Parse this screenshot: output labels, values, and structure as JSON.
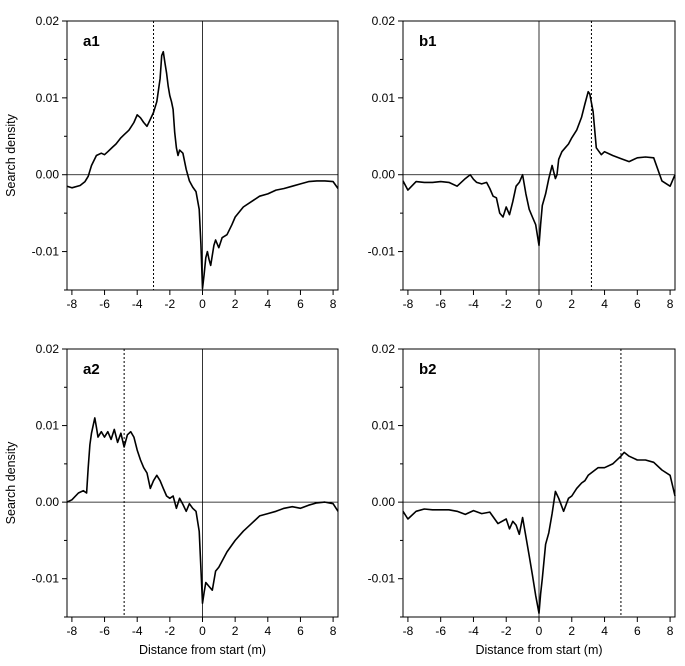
{
  "chart_data": [
    {
      "panel_label": "a1",
      "type": "line",
      "ylabel": "Search density",
      "xlabel": "",
      "xlim": [
        -8.3,
        8.3
      ],
      "ylim": [
        -0.015,
        0.02
      ],
      "xticks": [
        -8,
        -6,
        -4,
        -2,
        0,
        2,
        4,
        6,
        8
      ],
      "xtick_labels": [
        "-8",
        "-6",
        "-4",
        "-2",
        "0",
        "2",
        "4",
        "6",
        "8"
      ],
      "yticks": [
        0.02,
        0.01,
        0.0,
        -0.01
      ],
      "ytick_labels": [
        "0.02",
        "0.01",
        "0.00",
        "-0.01"
      ],
      "zero_vline": 0,
      "dotted_vline": -3.0,
      "series": [
        {
          "x": [
            -8.3,
            -8.0,
            -7.5,
            -7.2,
            -7.0,
            -6.8,
            -6.5,
            -6.2,
            -6.0,
            -5.8,
            -5.5,
            -5.3,
            -5.0,
            -4.8,
            -4.5,
            -4.2,
            -4.0,
            -3.8,
            -3.6,
            -3.4,
            -3.2,
            -3.0,
            -2.8,
            -2.6,
            -2.5,
            -2.4,
            -2.3,
            -2.2,
            -2.1,
            -2.0,
            -1.9,
            -1.8,
            -1.7,
            -1.6,
            -1.5,
            -1.4,
            -1.2,
            -1.0,
            -0.8,
            -0.6,
            -0.4,
            -0.2,
            -0.1,
            0.0,
            0.1,
            0.2,
            0.3,
            0.4,
            0.5,
            0.6,
            0.7,
            0.8,
            1.0,
            1.2,
            1.5,
            1.8,
            2.0,
            2.5,
            3.0,
            3.5,
            4.0,
            4.5,
            5.0,
            5.5,
            6.0,
            6.5,
            7.0,
            7.5,
            8.0,
            8.3
          ],
          "values": [
            -0.0015,
            -0.0017,
            -0.0014,
            -0.0009,
            -0.0002,
            0.0012,
            0.0025,
            0.0028,
            0.0026,
            0.003,
            0.0036,
            0.004,
            0.0048,
            0.0052,
            0.0058,
            0.0068,
            0.0078,
            0.0074,
            0.0068,
            0.0063,
            0.0072,
            0.0081,
            0.0095,
            0.0125,
            0.0155,
            0.016,
            0.0145,
            0.0132,
            0.0115,
            0.0103,
            0.0095,
            0.0085,
            0.0055,
            0.0035,
            0.0025,
            0.0032,
            0.0028,
            0.0007,
            -0.0008,
            -0.0016,
            -0.0022,
            -0.0045,
            -0.009,
            -0.0148,
            -0.013,
            -0.0108,
            -0.01,
            -0.011,
            -0.0118,
            -0.0105,
            -0.0092,
            -0.0085,
            -0.0095,
            -0.0082,
            -0.0078,
            -0.0065,
            -0.0055,
            -0.0042,
            -0.0035,
            -0.0028,
            -0.0025,
            -0.002,
            -0.0018,
            -0.0015,
            -0.0012,
            -0.0009,
            -0.0008,
            -0.0008,
            -0.0009,
            -0.0018
          ]
        }
      ]
    },
    {
      "panel_label": "b1",
      "type": "line",
      "ylabel": "",
      "xlabel": "",
      "xlim": [
        -8.3,
        8.3
      ],
      "ylim": [
        -0.015,
        0.02
      ],
      "xticks": [
        -8,
        -6,
        -4,
        -2,
        0,
        2,
        4,
        6,
        8
      ],
      "xtick_labels": [
        "-8",
        "-6",
        "-4",
        "-2",
        "0",
        "2",
        "4",
        "6",
        "8"
      ],
      "yticks": [
        0.02,
        0.01,
        0.0,
        -0.01
      ],
      "ytick_labels": [
        "0.02",
        "0.01",
        "0.00",
        "-0.01"
      ],
      "zero_vline": 0,
      "dotted_vline": 3.2,
      "series": [
        {
          "x": [
            -8.3,
            -8.0,
            -7.5,
            -7.0,
            -6.5,
            -6.0,
            -5.5,
            -5.0,
            -4.5,
            -4.2,
            -4.0,
            -3.8,
            -3.5,
            -3.2,
            -3.0,
            -2.8,
            -2.6,
            -2.4,
            -2.2,
            -2.0,
            -1.8,
            -1.6,
            -1.4,
            -1.2,
            -1.0,
            -0.8,
            -0.6,
            -0.4,
            -0.2,
            0.0,
            0.1,
            0.2,
            0.4,
            0.6,
            0.8,
            1.0,
            1.1,
            1.2,
            1.4,
            1.6,
            1.8,
            2.0,
            2.3,
            2.6,
            2.8,
            3.0,
            3.1,
            3.3,
            3.5,
            3.8,
            4.0,
            4.5,
            5.0,
            5.5,
            6.0,
            6.5,
            7.0,
            7.5,
            8.0,
            8.3
          ],
          "values": [
            -0.0008,
            -0.002,
            -0.0009,
            -0.001,
            -0.001,
            -0.0009,
            -0.001,
            -0.0015,
            -0.0005,
            0.0,
            -0.0006,
            -0.001,
            -0.0012,
            -0.001,
            -0.0018,
            -0.0028,
            -0.003,
            -0.005,
            -0.0055,
            -0.0042,
            -0.0052,
            -0.0035,
            -0.0015,
            -0.001,
            0.0,
            -0.0025,
            -0.0045,
            -0.0055,
            -0.0065,
            -0.0092,
            -0.0065,
            -0.004,
            -0.0025,
            -0.0005,
            0.0012,
            -0.0005,
            0.0,
            0.002,
            0.003,
            0.0035,
            0.004,
            0.0048,
            0.0058,
            0.0075,
            0.0092,
            0.0108,
            0.0105,
            0.0082,
            0.0035,
            0.0026,
            0.003,
            0.0025,
            0.0021,
            0.0017,
            0.0022,
            0.0023,
            0.0022,
            -0.0008,
            -0.0015,
            0.0
          ]
        }
      ]
    },
    {
      "panel_label": "a2",
      "type": "line",
      "ylabel": "Search density",
      "xlabel": "Distance from start (m)",
      "xlim": [
        -8.3,
        8.3
      ],
      "ylim": [
        -0.015,
        0.02
      ],
      "xticks": [
        -8,
        -6,
        -4,
        -2,
        0,
        2,
        4,
        6,
        8
      ],
      "xtick_labels": [
        "-8",
        "-6",
        "-4",
        "-2",
        "0",
        "2",
        "4",
        "6",
        "8"
      ],
      "yticks": [
        0.02,
        0.01,
        0.0,
        -0.01
      ],
      "ytick_labels": [
        "0.02",
        "0.01",
        "0.00",
        "-0.01"
      ],
      "zero_vline": 0,
      "dotted_vline": -4.8,
      "series": [
        {
          "x": [
            -8.3,
            -8.0,
            -7.6,
            -7.3,
            -7.1,
            -7.0,
            -6.9,
            -6.8,
            -6.6,
            -6.5,
            -6.4,
            -6.2,
            -6.0,
            -5.8,
            -5.6,
            -5.4,
            -5.2,
            -5.0,
            -4.8,
            -4.6,
            -4.4,
            -4.2,
            -4.0,
            -3.8,
            -3.6,
            -3.4,
            -3.2,
            -3.0,
            -2.8,
            -2.6,
            -2.4,
            -2.2,
            -2.0,
            -1.8,
            -1.6,
            -1.4,
            -1.2,
            -1.0,
            -0.8,
            -0.6,
            -0.4,
            -0.2,
            0.0,
            0.1,
            0.2,
            0.4,
            0.6,
            0.8,
            1.0,
            1.5,
            2.0,
            2.5,
            3.0,
            3.5,
            4.0,
            4.5,
            5.0,
            5.5,
            6.0,
            6.5,
            7.0,
            7.5,
            8.0,
            8.3
          ],
          "values": [
            0.0,
            0.0003,
            0.0012,
            0.0015,
            0.0012,
            0.0045,
            0.0075,
            0.009,
            0.011,
            0.0098,
            0.0085,
            0.0092,
            0.0085,
            0.0092,
            0.0082,
            0.0095,
            0.0078,
            0.009,
            0.0072,
            0.0088,
            0.0092,
            0.0085,
            0.0068,
            0.0055,
            0.0045,
            0.0038,
            0.0018,
            0.0028,
            0.0035,
            0.0028,
            0.0018,
            0.0008,
            0.0005,
            0.0008,
            -0.0008,
            0.0005,
            -0.0003,
            -0.0012,
            -0.0002,
            -0.0008,
            -0.0012,
            -0.0038,
            -0.0132,
            -0.0118,
            -0.0105,
            -0.011,
            -0.0115,
            -0.009,
            -0.0085,
            -0.0065,
            -0.005,
            -0.0038,
            -0.0028,
            -0.0018,
            -0.0015,
            -0.0012,
            -0.0008,
            -0.0006,
            -0.0008,
            -0.0004,
            -0.0001,
            0.0,
            -0.0002,
            -0.0012
          ]
        }
      ]
    },
    {
      "panel_label": "b2",
      "type": "line",
      "ylabel": "",
      "xlabel": "Distance from start (m)",
      "xlim": [
        -8.3,
        8.3
      ],
      "ylim": [
        -0.015,
        0.02
      ],
      "xticks": [
        -8,
        -6,
        -4,
        -2,
        0,
        2,
        4,
        6,
        8
      ],
      "xtick_labels": [
        "-8",
        "-6",
        "-4",
        "-2",
        "0",
        "2",
        "4",
        "6",
        "8"
      ],
      "yticks": [
        0.02,
        0.01,
        0.0,
        -0.01
      ],
      "ytick_labels": [
        "0.02",
        "0.01",
        "0.00",
        "-0.01"
      ],
      "zero_vline": 0,
      "dotted_vline": 5.0,
      "series": [
        {
          "x": [
            -8.3,
            -8.0,
            -7.5,
            -7.0,
            -6.5,
            -6.0,
            -5.5,
            -5.0,
            -4.5,
            -4.0,
            -3.5,
            -3.0,
            -2.5,
            -2.0,
            -1.8,
            -1.6,
            -1.4,
            -1.2,
            -1.0,
            -0.8,
            -0.6,
            -0.4,
            -0.2,
            0.0,
            0.1,
            0.2,
            0.4,
            0.6,
            0.8,
            1.0,
            1.2,
            1.5,
            1.8,
            2.0,
            2.3,
            2.6,
            2.8,
            3.0,
            3.3,
            3.6,
            4.0,
            4.5,
            5.0,
            5.2,
            5.5,
            6.0,
            6.5,
            7.0,
            7.5,
            8.0,
            8.3
          ],
          "values": [
            -0.0012,
            -0.0022,
            -0.0012,
            -0.0009,
            -0.001,
            -0.001,
            -0.001,
            -0.0012,
            -0.0016,
            -0.0011,
            -0.0015,
            -0.0013,
            -0.0028,
            -0.0022,
            -0.0035,
            -0.0025,
            -0.003,
            -0.0042,
            -0.002,
            -0.0045,
            -0.007,
            -0.0095,
            -0.0122,
            -0.0145,
            -0.012,
            -0.01,
            -0.0055,
            -0.004,
            -0.0015,
            0.0014,
            0.0005,
            -0.0012,
            0.0005,
            0.0008,
            0.0018,
            0.0025,
            0.0028,
            0.0035,
            0.004,
            0.0045,
            0.0045,
            0.005,
            0.006,
            0.0065,
            0.006,
            0.0055,
            0.0055,
            0.0052,
            0.0042,
            0.0035,
            0.0008
          ]
        }
      ]
    }
  ]
}
